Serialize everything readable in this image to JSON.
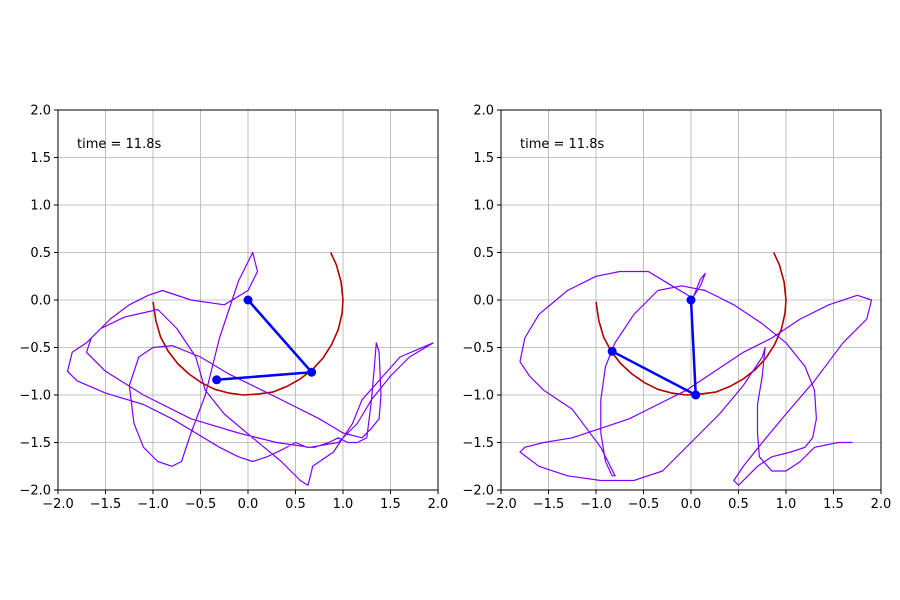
{
  "chart_data": [
    {
      "type": "line",
      "title": "",
      "xlabel": "",
      "ylabel": "",
      "xlim": [
        -2.0,
        2.0
      ],
      "ylim": [
        -2.0,
        2.0
      ],
      "xticks": [
        "−2.0",
        "−1.5",
        "−1.0",
        "−0.5",
        "0.0",
        "0.5",
        "1.0",
        "1.5",
        "2.0"
      ],
      "yticks": [
        "−2.0",
        "−1.5",
        "−1.0",
        "−0.5",
        "0.0",
        "0.5",
        "1.0",
        "1.5",
        "2.0"
      ],
      "grid": true,
      "annotation": "time = 11.8s",
      "pendulum": {
        "pivot": [
          0.0,
          0.0
        ],
        "joint": [
          0.67,
          -0.76
        ],
        "tip": [
          -0.33,
          -0.84
        ],
        "color": "#0000ff"
      },
      "series": [
        {
          "color": "#b00000",
          "x": [
            0.87,
            0.93,
            0.98,
            1.0,
            0.99,
            0.95,
            0.88,
            0.79,
            0.68,
            0.55,
            0.41,
            0.26,
            0.1,
            -0.05,
            -0.2,
            -0.35,
            -0.49,
            -0.62,
            -0.74,
            -0.84,
            -0.92,
            -0.97,
            -1.0
          ],
          "y": [
            0.5,
            0.37,
            0.19,
            0.0,
            -0.14,
            -0.31,
            -0.47,
            -0.61,
            -0.73,
            -0.83,
            -0.91,
            -0.97,
            -0.99,
            -1.0,
            -0.98,
            -0.94,
            -0.87,
            -0.78,
            -0.67,
            -0.54,
            -0.39,
            -0.22,
            -0.02
          ]
        },
        {
          "color": "#7f00ff",
          "x": [
            1.95,
            1.6,
            1.2,
            1.1,
            0.9,
            0.68,
            0.67,
            0.63,
            0.55,
            0.35,
            0.05,
            -0.25,
            -0.45,
            -0.55,
            -0.75,
            -0.95,
            -1.3,
            -1.55,
            -1.7,
            -1.85,
            -1.9,
            -1.8,
            -1.5,
            -1.1,
            -0.8,
            -0.55,
            -0.3,
            -0.1,
            0.05,
            0.2,
            0.35,
            0.5,
            0.62,
            0.7,
            0.85,
            0.95,
            1.05,
            1.15,
            1.25,
            1.3,
            1.33,
            1.35,
            1.38,
            1.4,
            1.38,
            1.3,
            1.2,
            1.0,
            0.75,
            0.45,
            0.15,
            -0.2,
            -0.5,
            -0.8,
            -1.0,
            -1.15,
            -1.25,
            -1.2,
            -1.1,
            -0.95,
            -0.8,
            -0.7,
            -0.6,
            -0.45,
            -0.3,
            -0.1,
            0.05,
            0.1,
            0.0,
            -0.25,
            -0.6,
            -0.9,
            -1.05,
            -1.25,
            -1.45,
            -1.65,
            -1.7,
            -1.5,
            -1.1,
            -0.6,
            -0.1,
            0.3,
            0.65,
            0.95,
            1.15,
            1.3,
            1.5,
            1.7,
            1.95
          ],
          "y": [
            -0.45,
            -0.6,
            -1.05,
            -1.3,
            -1.6,
            -1.75,
            -1.8,
            -1.95,
            -1.9,
            -1.7,
            -1.45,
            -1.2,
            -0.95,
            -0.6,
            -0.3,
            -0.1,
            -0.18,
            -0.3,
            -0.45,
            -0.55,
            -0.75,
            -0.85,
            -0.98,
            -1.1,
            -1.25,
            -1.4,
            -1.55,
            -1.65,
            -1.7,
            -1.65,
            -1.58,
            -1.5,
            -1.55,
            -1.55,
            -1.5,
            -1.45,
            -1.5,
            -1.5,
            -1.45,
            -1.05,
            -0.7,
            -0.45,
            -0.55,
            -1.0,
            -1.25,
            -1.35,
            -1.45,
            -1.4,
            -1.25,
            -1.1,
            -0.95,
            -0.78,
            -0.6,
            -0.48,
            -0.5,
            -0.6,
            -0.9,
            -1.3,
            -1.55,
            -1.7,
            -1.75,
            -1.7,
            -1.4,
            -1.0,
            -0.4,
            0.2,
            0.5,
            0.3,
            0.1,
            -0.05,
            0.0,
            0.1,
            0.05,
            -0.05,
            -0.2,
            -0.4,
            -0.55,
            -0.75,
            -1.0,
            -1.25,
            -1.4,
            -1.5,
            -1.55,
            -1.5,
            -1.3,
            -1.05,
            -0.8,
            -0.6,
            -0.45
          ]
        }
      ]
    },
    {
      "type": "line",
      "title": "",
      "xlabel": "",
      "ylabel": "",
      "xlim": [
        -2.0,
        2.0
      ],
      "ylim": [
        -2.0,
        2.0
      ],
      "xticks": [
        "−2.0",
        "−1.5",
        "−1.0",
        "−0.5",
        "0.0",
        "0.5",
        "1.0",
        "1.5",
        "2.0"
      ],
      "yticks": [
        "−2.0",
        "−1.5",
        "−1.0",
        "−0.5",
        "0.0",
        "0.5",
        "1.0",
        "1.5",
        "2.0"
      ],
      "grid": true,
      "annotation": "time = 11.8s",
      "pendulum": {
        "pivot": [
          0.0,
          0.0
        ],
        "joint": [
          0.05,
          -1.0
        ],
        "tip": [
          -0.83,
          -0.54
        ],
        "color": "#0000ff"
      },
      "series": [
        {
          "color": "#b00000",
          "x": [
            0.87,
            0.93,
            0.98,
            1.0,
            0.99,
            0.95,
            0.88,
            0.79,
            0.68,
            0.55,
            0.41,
            0.26,
            0.1,
            -0.05,
            -0.2,
            -0.35,
            -0.49,
            -0.62,
            -0.74,
            -0.84,
            -0.92,
            -0.97,
            -1.0
          ],
          "y": [
            0.5,
            0.37,
            0.19,
            0.0,
            -0.14,
            -0.31,
            -0.47,
            -0.61,
            -0.73,
            -0.83,
            -0.91,
            -0.97,
            -0.99,
            -1.0,
            -0.98,
            -0.94,
            -0.87,
            -0.78,
            -0.67,
            -0.54,
            -0.39,
            -0.22,
            -0.02
          ]
        },
        {
          "color": "#7f00ff",
          "x": [
            0.0,
            0.1,
            0.15,
            0.1,
            0.02,
            -0.2,
            -0.45,
            -0.75,
            -1.0,
            -1.3,
            -1.6,
            -1.75,
            -1.8,
            -1.7,
            -1.55,
            -1.4,
            -1.25,
            -1.1,
            -0.95,
            -0.85,
            -0.8,
            -0.83,
            -0.9,
            -0.95,
            -0.95,
            -0.9,
            -0.8,
            -0.6,
            -0.35,
            -0.1,
            0.15,
            0.45,
            0.75,
            1.0,
            1.2,
            1.3,
            1.32,
            1.28,
            1.2,
            1.05,
            0.85,
            0.7,
            0.6,
            0.5,
            0.45,
            0.55,
            0.75,
            1.0,
            1.3,
            1.6,
            1.85,
            1.9,
            1.75,
            1.45,
            1.15,
            0.85,
            0.55,
            0.25,
            -0.05,
            -0.35,
            -0.65,
            -0.95,
            -1.25,
            -1.55,
            -1.75,
            -1.8,
            -1.6,
            -1.3,
            -0.95,
            -0.6,
            -0.3,
            0.0,
            0.3,
            0.55,
            0.75,
            0.78,
            0.75,
            0.7,
            0.7,
            0.72,
            0.85,
            1.0,
            1.15,
            1.3,
            1.55,
            1.7
          ],
          "y": [
            0.0,
            0.15,
            0.28,
            0.22,
            0.02,
            0.15,
            0.3,
            0.3,
            0.25,
            0.1,
            -0.15,
            -0.4,
            -0.65,
            -0.8,
            -0.95,
            -1.05,
            -1.15,
            -1.35,
            -1.55,
            -1.75,
            -1.85,
            -1.85,
            -1.7,
            -1.4,
            -1.05,
            -0.7,
            -0.45,
            -0.15,
            0.1,
            0.15,
            0.1,
            -0.05,
            -0.25,
            -0.45,
            -0.7,
            -0.95,
            -1.25,
            -1.45,
            -1.55,
            -1.6,
            -1.65,
            -1.75,
            -1.85,
            -1.95,
            -1.9,
            -1.75,
            -1.5,
            -1.2,
            -0.85,
            -0.45,
            -0.2,
            0.0,
            0.05,
            -0.05,
            -0.2,
            -0.4,
            -0.55,
            -0.75,
            -0.95,
            -1.1,
            -1.25,
            -1.35,
            -1.45,
            -1.5,
            -1.55,
            -1.6,
            -1.75,
            -1.85,
            -1.9,
            -1.9,
            -1.8,
            -1.5,
            -1.2,
            -0.9,
            -0.6,
            -0.5,
            -0.8,
            -1.1,
            -1.4,
            -1.65,
            -1.8,
            -1.8,
            -1.7,
            -1.55,
            -1.5,
            -1.5
          ]
        }
      ]
    }
  ]
}
